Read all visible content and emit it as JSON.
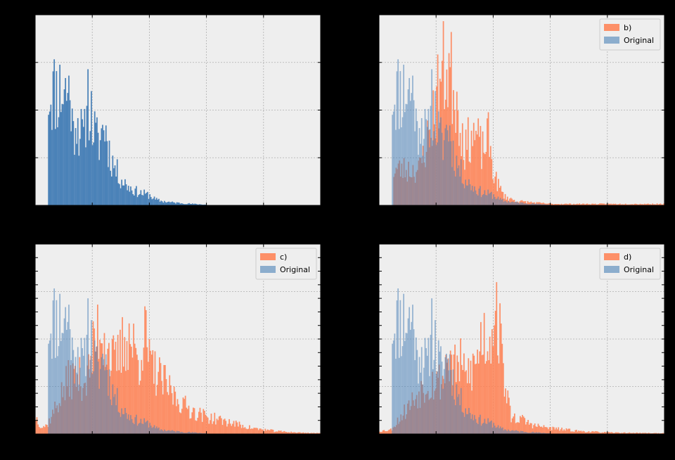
{
  "figure": {
    "background": "#000000",
    "axes_background": "#eeeeee",
    "grid_color": "#b0b0b0",
    "original_color": "#4b82b8",
    "transformed_color": "#ff7f50"
  },
  "chart_data": [
    {
      "type": "bar",
      "panel": "top-left",
      "grid": true,
      "legend": false,
      "x_range": [
        0,
        100
      ],
      "y_range": [
        0,
        1
      ],
      "series": [
        {
          "key": "original",
          "color": "#4b82b8",
          "peaks": [
            [
              12,
              0.8
            ],
            [
              12.5,
              0.72
            ],
            [
              13,
              0.45
            ],
            [
              14,
              0.65
            ],
            [
              15,
              0.55
            ],
            [
              17,
              0.45
            ],
            [
              18,
              0.82
            ],
            [
              20,
              0.55
            ],
            [
              22,
              0.42
            ],
            [
              24,
              0.58
            ],
            [
              26,
              0.35
            ],
            [
              28,
              0.25
            ],
            [
              30,
              0.18
            ],
            [
              32,
              0.14
            ],
            [
              34,
              0.11
            ],
            [
              36,
              0.09
            ],
            [
              38,
              0.08
            ],
            [
              40,
              0.07
            ],
            [
              42,
              0.04
            ],
            [
              44,
              0.03
            ],
            [
              48,
              0.02
            ],
            [
              55,
              0.01
            ],
            [
              65,
              0.0
            ]
          ],
          "support": [
            4.5,
            60
          ],
          "seed": 11
        }
      ]
    },
    {
      "type": "bar",
      "panel": "top-right",
      "grid": true,
      "legend": true,
      "legend_position": "top-right",
      "x_range": [
        0,
        100
      ],
      "y_range": [
        0,
        1
      ],
      "series": [
        {
          "key": "transformed",
          "name": "b)",
          "color": "#ff7f50",
          "peaks": [
            [
              14,
              0.25
            ],
            [
              18,
              0.55
            ],
            [
              20,
              0.75
            ],
            [
              22,
              0.93
            ],
            [
              24,
              0.96
            ],
            [
              26,
              0.85
            ],
            [
              28,
              0.62
            ],
            [
              30,
              0.38
            ],
            [
              32,
              0.5
            ],
            [
              34,
              0.48
            ],
            [
              36,
              0.37
            ],
            [
              38,
              0.48
            ],
            [
              40,
              0.22
            ],
            [
              42,
              0.12
            ],
            [
              44,
              0.06
            ],
            [
              48,
              0.03
            ],
            [
              60,
              0.01
            ],
            [
              80,
              0.01
            ],
            [
              100,
              0.01
            ]
          ],
          "support": [
            5,
            100
          ],
          "seed": 23
        },
        {
          "key": "original",
          "name": "Original",
          "color": "#4b82b8",
          "peaks": [
            [
              12,
              0.8
            ],
            [
              12.5,
              0.72
            ],
            [
              13,
              0.45
            ],
            [
              14,
              0.65
            ],
            [
              15,
              0.55
            ],
            [
              17,
              0.45
            ],
            [
              18,
              0.82
            ],
            [
              20,
              0.55
            ],
            [
              22,
              0.42
            ],
            [
              24,
              0.58
            ],
            [
              26,
              0.35
            ],
            [
              28,
              0.25
            ],
            [
              30,
              0.18
            ],
            [
              32,
              0.14
            ],
            [
              34,
              0.11
            ],
            [
              36,
              0.09
            ],
            [
              38,
              0.08
            ],
            [
              40,
              0.07
            ],
            [
              42,
              0.04
            ],
            [
              44,
              0.03
            ],
            [
              48,
              0.02
            ],
            [
              55,
              0.01
            ],
            [
              65,
              0.0
            ]
          ],
          "support": [
            4.5,
            60
          ],
          "seed": 11
        }
      ]
    },
    {
      "type": "bar",
      "panel": "bottom-left",
      "grid": true,
      "legend": true,
      "legend_position": "top-right",
      "x_range": [
        0,
        100
      ],
      "y_range": [
        0,
        1
      ],
      "series": [
        {
          "key": "transformed",
          "name": "c)",
          "color": "#ff7f50",
          "peaks": [
            [
              0,
              0.12
            ],
            [
              2,
              0.05
            ],
            [
              4,
              0.06
            ],
            [
              12,
              0.4
            ],
            [
              18,
              0.38
            ],
            [
              22,
              0.75
            ],
            [
              24,
              0.7
            ],
            [
              26,
              0.55
            ],
            [
              28,
              0.48
            ],
            [
              32,
              0.7
            ],
            [
              34,
              0.62
            ],
            [
              36,
              0.5
            ],
            [
              38,
              0.72
            ],
            [
              40,
              0.48
            ],
            [
              44,
              0.38
            ],
            [
              48,
              0.28
            ],
            [
              52,
              0.2
            ],
            [
              56,
              0.15
            ],
            [
              60,
              0.12
            ],
            [
              64,
              0.1
            ],
            [
              70,
              0.07
            ],
            [
              76,
              0.04
            ],
            [
              84,
              0.02
            ],
            [
              92,
              0.01
            ],
            [
              100,
              0.005
            ]
          ],
          "support": [
            0,
            100
          ],
          "seed": 37
        },
        {
          "key": "original",
          "name": "Original",
          "color": "#4b82b8",
          "peaks": [
            [
              12,
              0.8
            ],
            [
              12.5,
              0.72
            ],
            [
              13,
              0.45
            ],
            [
              14,
              0.65
            ],
            [
              15,
              0.55
            ],
            [
              17,
              0.45
            ],
            [
              18,
              0.82
            ],
            [
              20,
              0.55
            ],
            [
              22,
              0.42
            ],
            [
              24,
              0.58
            ],
            [
              26,
              0.35
            ],
            [
              28,
              0.25
            ],
            [
              30,
              0.18
            ],
            [
              32,
              0.14
            ],
            [
              34,
              0.11
            ],
            [
              36,
              0.09
            ],
            [
              38,
              0.08
            ],
            [
              40,
              0.07
            ],
            [
              42,
              0.04
            ],
            [
              44,
              0.03
            ],
            [
              48,
              0.02
            ],
            [
              55,
              0.01
            ],
            [
              65,
              0.0
            ]
          ],
          "support": [
            4.5,
            60
          ],
          "seed": 11
        }
      ]
    },
    {
      "type": "bar",
      "panel": "bottom-right",
      "grid": true,
      "legend": true,
      "legend_position": "top-right",
      "x_range": [
        0,
        100
      ],
      "y_range": [
        0,
        1
      ],
      "series": [
        {
          "key": "transformed",
          "name": "d)",
          "color": "#ff7f50",
          "peaks": [
            [
              0,
              0.02
            ],
            [
              4,
              0.03
            ],
            [
              16,
              0.35
            ],
            [
              22,
              0.38
            ],
            [
              24,
              0.55
            ],
            [
              26,
              0.45
            ],
            [
              28,
              0.5
            ],
            [
              30,
              0.4
            ],
            [
              32,
              0.45
            ],
            [
              34,
              0.5
            ],
            [
              36,
              0.72
            ],
            [
              38,
              0.62
            ],
            [
              40,
              0.85
            ],
            [
              41,
              0.9
            ],
            [
              42,
              0.7
            ],
            [
              44,
              0.35
            ],
            [
              46,
              0.12
            ],
            [
              50,
              0.1
            ],
            [
              54,
              0.06
            ],
            [
              60,
              0.04
            ],
            [
              70,
              0.02
            ],
            [
              80,
              0.01
            ],
            [
              100,
              0.005
            ]
          ],
          "support": [
            0,
            100
          ],
          "seed": 53
        },
        {
          "key": "original",
          "name": "Original",
          "color": "#4b82b8",
          "peaks": [
            [
              12,
              0.8
            ],
            [
              12.5,
              0.72
            ],
            [
              13,
              0.45
            ],
            [
              14,
              0.65
            ],
            [
              15,
              0.55
            ],
            [
              17,
              0.45
            ],
            [
              18,
              0.82
            ],
            [
              20,
              0.55
            ],
            [
              22,
              0.42
            ],
            [
              24,
              0.58
            ],
            [
              26,
              0.35
            ],
            [
              28,
              0.25
            ],
            [
              30,
              0.18
            ],
            [
              32,
              0.14
            ],
            [
              34,
              0.11
            ],
            [
              36,
              0.09
            ],
            [
              38,
              0.08
            ],
            [
              40,
              0.07
            ],
            [
              42,
              0.04
            ],
            [
              44,
              0.03
            ],
            [
              48,
              0.02
            ],
            [
              55,
              0.01
            ],
            [
              65,
              0.0
            ]
          ],
          "support": [
            4.5,
            60
          ],
          "seed": 11
        }
      ]
    }
  ]
}
